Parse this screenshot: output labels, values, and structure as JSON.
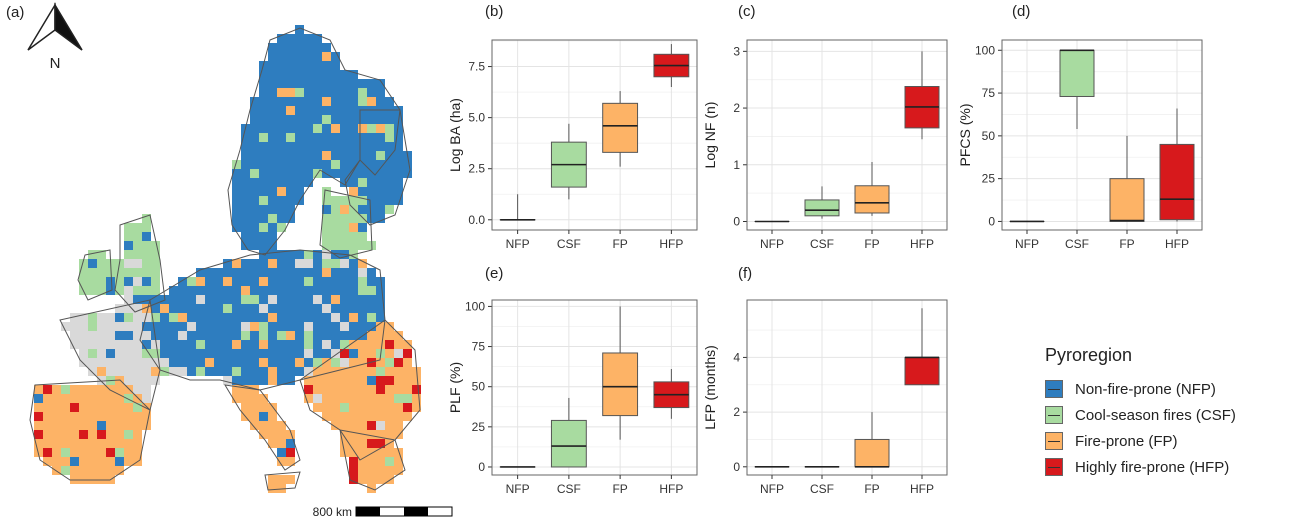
{
  "colors": {
    "NFP": "#2e7dbf",
    "CSF": "#a8dba0",
    "FP": "#fdb366",
    "HFP": "#d7191c",
    "nodata": "#d9d9d9"
  },
  "map": {
    "panel_label": "(a)",
    "north_label": "N",
    "scale_label": "800 km"
  },
  "legend": {
    "title": "Pyroregion",
    "items": [
      {
        "key": "NFP",
        "label": "Non-fire-prone (NFP)"
      },
      {
        "key": "CSF",
        "label": "Cool-season fires (CSF)"
      },
      {
        "key": "FP",
        "label": "Fire-prone (FP)"
      },
      {
        "key": "HFP",
        "label": "Highly fire-prone (HFP)"
      }
    ]
  },
  "chart_data": [
    {
      "id": "b",
      "panel_label": "(b)",
      "type": "box",
      "categories": [
        "NFP",
        "CSF",
        "FP",
        "HFP"
      ],
      "ylabel": "Log BA (ha)",
      "ylim": [
        -0.5,
        8.8
      ],
      "yticks": [
        "0.0",
        "2.5",
        "5.0",
        "7.5"
      ],
      "ytick_values": [
        0,
        2.5,
        5,
        7.5
      ],
      "boxes": [
        {
          "cat": "NFP",
          "min": 0,
          "q1": 0,
          "median": 0,
          "q3": 0,
          "max": 1.25
        },
        {
          "cat": "CSF",
          "min": 1.0,
          "q1": 1.6,
          "median": 2.7,
          "q3": 3.8,
          "max": 4.7
        },
        {
          "cat": "FP",
          "min": 2.6,
          "q1": 3.3,
          "median": 4.6,
          "q3": 5.7,
          "max": 6.3
        },
        {
          "cat": "HFP",
          "min": 6.5,
          "q1": 7.0,
          "median": 7.55,
          "q3": 8.1,
          "max": 8.6
        }
      ]
    },
    {
      "id": "c",
      "panel_label": "(c)",
      "type": "box",
      "categories": [
        "NFP",
        "CSF",
        "FP",
        "HFP"
      ],
      "ylabel": "Log NF (n)",
      "ylim": [
        -0.15,
        3.2
      ],
      "yticks": [
        "0",
        "1",
        "2",
        "3"
      ],
      "ytick_values": [
        0,
        1,
        2,
        3
      ],
      "boxes": [
        {
          "cat": "NFP",
          "min": 0,
          "q1": 0,
          "median": 0,
          "q3": 0,
          "max": 0
        },
        {
          "cat": "CSF",
          "min": 0.05,
          "q1": 0.1,
          "median": 0.2,
          "q3": 0.38,
          "max": 0.62
        },
        {
          "cat": "FP",
          "min": 0.1,
          "q1": 0.15,
          "median": 0.33,
          "q3": 0.63,
          "max": 1.05
        },
        {
          "cat": "HFP",
          "min": 1.45,
          "q1": 1.65,
          "median": 2.02,
          "q3": 2.38,
          "max": 3.0
        }
      ]
    },
    {
      "id": "d",
      "panel_label": "(d)",
      "type": "box",
      "categories": [
        "NFP",
        "CSF",
        "FP",
        "HFP"
      ],
      "ylabel": "PFCS (%)",
      "ylim": [
        -5,
        106
      ],
      "yticks": [
        "0",
        "25",
        "50",
        "75",
        "100"
      ],
      "ytick_values": [
        0,
        25,
        50,
        75,
        100
      ],
      "boxes": [
        {
          "cat": "NFP",
          "min": 0,
          "q1": 0,
          "median": 0,
          "q3": 0,
          "max": 0
        },
        {
          "cat": "CSF",
          "min": 54,
          "q1": 73,
          "median": 100,
          "q3": 100,
          "max": 100
        },
        {
          "cat": "FP",
          "min": 0,
          "q1": 0,
          "median": 0.5,
          "q3": 25,
          "max": 50
        },
        {
          "cat": "HFP",
          "min": 0,
          "q1": 1,
          "median": 13,
          "q3": 45,
          "max": 66
        }
      ]
    },
    {
      "id": "e",
      "panel_label": "(e)",
      "type": "box",
      "categories": [
        "NFP",
        "CSF",
        "FP",
        "HFP"
      ],
      "ylabel": "PLF (%)",
      "ylim": [
        -5,
        104
      ],
      "yticks": [
        "0",
        "25",
        "50",
        "75",
        "100"
      ],
      "ytick_values": [
        0,
        25,
        50,
        75,
        100
      ],
      "boxes": [
        {
          "cat": "NFP",
          "min": 0,
          "q1": 0,
          "median": 0,
          "q3": 0,
          "max": 0
        },
        {
          "cat": "CSF",
          "min": 0,
          "q1": 0,
          "median": 13,
          "q3": 29,
          "max": 43
        },
        {
          "cat": "FP",
          "min": 17,
          "q1": 32,
          "median": 50,
          "q3": 71,
          "max": 100
        },
        {
          "cat": "HFP",
          "min": 30,
          "q1": 37,
          "median": 45,
          "q3": 53,
          "max": 61
        }
      ]
    },
    {
      "id": "f",
      "panel_label": "(f)",
      "type": "box",
      "categories": [
        "NFP",
        "CSF",
        "FP",
        "HFP"
      ],
      "ylabel": "LFP (months)",
      "ylim": [
        -0.3,
        6.1
      ],
      "yticks": [
        "0",
        "2",
        "4"
      ],
      "ytick_values": [
        0,
        2,
        4
      ],
      "boxes": [
        {
          "cat": "NFP",
          "min": 0,
          "q1": 0,
          "median": 0,
          "q3": 0,
          "max": 0
        },
        {
          "cat": "CSF",
          "min": 0,
          "q1": 0,
          "median": 0,
          "q3": 0,
          "max": 0
        },
        {
          "cat": "FP",
          "min": 0,
          "q1": 0,
          "median": 0,
          "q3": 1,
          "max": 2
        },
        {
          "cat": "HFP",
          "min": 3,
          "q1": 3,
          "median": 4,
          "q3": 4,
          "max": 5.8
        }
      ]
    }
  ]
}
